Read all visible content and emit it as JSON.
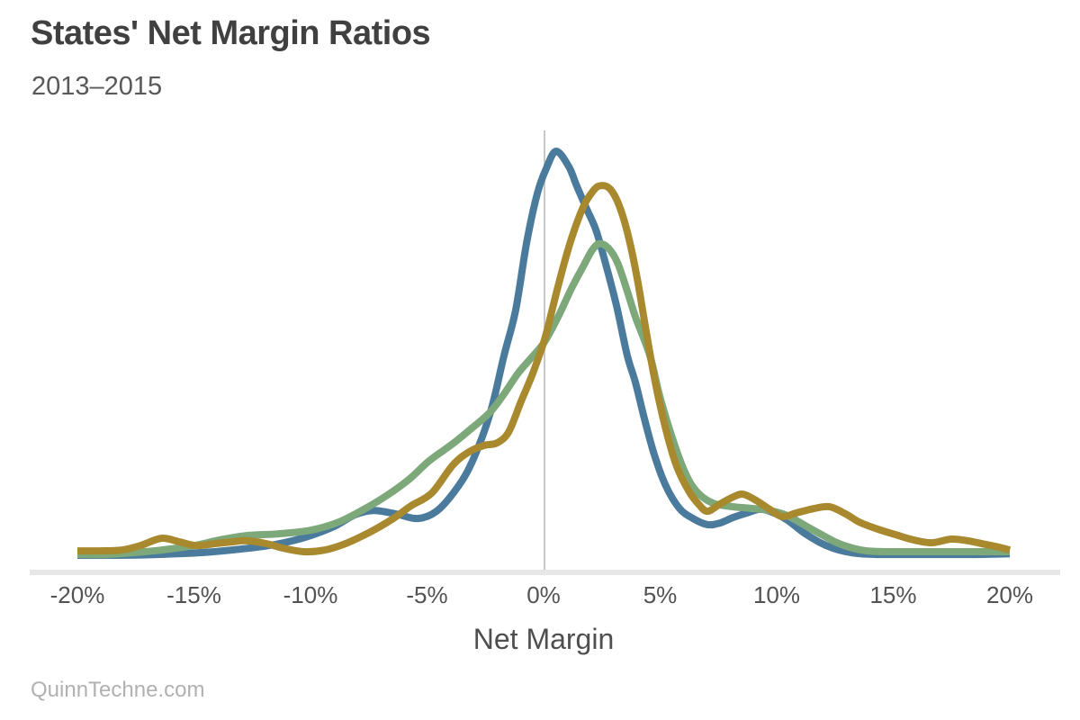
{
  "header": {
    "title": "States' Net Margin Ratios",
    "subtitle": "2013–2015"
  },
  "footer": {
    "source": "QuinnTechne.com"
  },
  "chart_data": {
    "type": "line",
    "variant": "kde-density",
    "title": "States' Net Margin Ratios",
    "subtitle": "2013–2015",
    "xlabel": "Net Margin",
    "ylabel": "",
    "x_unit": "percent",
    "xlim": [
      -20,
      20
    ],
    "x_ticks": [
      -20,
      -15,
      -10,
      -5,
      0,
      5,
      10,
      15,
      20
    ],
    "x_tick_labels": [
      "-20%",
      "-15%",
      "-10%",
      "-5%",
      "0%",
      "5%",
      "10%",
      "15%",
      "20%"
    ],
    "grid": "single vertical reference line at 0%",
    "legend": "none",
    "axis_line_color": "#e7e7e7",
    "zero_line_color": "#c8c8c8",
    "y_axis_shown": false,
    "y_note": "density values normalized so tallest (blue) peak = 1.0",
    "series": [
      {
        "name": "blue",
        "color": "#4a7a9c",
        "peak": {
          "x": 0.5,
          "density": 1.0
        },
        "points": [
          [
            -20,
            0
          ],
          [
            -18.3,
            0
          ],
          [
            -16.6,
            0.002
          ],
          [
            -14.6,
            0.007
          ],
          [
            -12.9,
            0.016
          ],
          [
            -11.5,
            0.027
          ],
          [
            -10.2,
            0.045
          ],
          [
            -9.0,
            0.071
          ],
          [
            -8.1,
            0.1
          ],
          [
            -7.3,
            0.111
          ],
          [
            -6.3,
            0.102
          ],
          [
            -5.4,
            0.091
          ],
          [
            -4.6,
            0.109
          ],
          [
            -3.8,
            0.16
          ],
          [
            -3.1,
            0.227
          ],
          [
            -2.3,
            0.35
          ],
          [
            -1.7,
            0.494
          ],
          [
            -1.2,
            0.606
          ],
          [
            -0.73,
            0.773
          ],
          [
            -0.27,
            0.895
          ],
          [
            0.12,
            0.958
          ],
          [
            0.54,
            1.0
          ],
          [
            1.08,
            0.962
          ],
          [
            1.43,
            0.913
          ],
          [
            1.85,
            0.857
          ],
          [
            2.24,
            0.806
          ],
          [
            2.63,
            0.728
          ],
          [
            3.13,
            0.617
          ],
          [
            3.59,
            0.494
          ],
          [
            3.94,
            0.428
          ],
          [
            4.32,
            0.339
          ],
          [
            4.75,
            0.249
          ],
          [
            5.25,
            0.171
          ],
          [
            5.83,
            0.116
          ],
          [
            6.41,
            0.091
          ],
          [
            7.03,
            0.076
          ],
          [
            7.57,
            0.08
          ],
          [
            8.15,
            0.094
          ],
          [
            8.73,
            0.105
          ],
          [
            9.31,
            0.114
          ],
          [
            9.88,
            0.105
          ],
          [
            10.46,
            0.087
          ],
          [
            11.16,
            0.056
          ],
          [
            11.81,
            0.033
          ],
          [
            12.39,
            0.018
          ],
          [
            12.97,
            0.009
          ],
          [
            13.55,
            0.004
          ],
          [
            14.32,
            0.002
          ],
          [
            15.29,
            0.002
          ],
          [
            16.83,
            0.002
          ],
          [
            18.38,
            0.002
          ],
          [
            20,
            0.004
          ]
        ]
      },
      {
        "name": "green",
        "color": "#7da87a",
        "peak": {
          "x": 2.4,
          "density": 0.77
        },
        "points": [
          [
            -20,
            0.002
          ],
          [
            -18.7,
            0.002
          ],
          [
            -17.5,
            0.007
          ],
          [
            -16.4,
            0.013
          ],
          [
            -15.0,
            0.024
          ],
          [
            -13.9,
            0.038
          ],
          [
            -12.7,
            0.049
          ],
          [
            -11.4,
            0.053
          ],
          [
            -10.0,
            0.062
          ],
          [
            -8.8,
            0.082
          ],
          [
            -7.7,
            0.114
          ],
          [
            -6.7,
            0.149
          ],
          [
            -5.75,
            0.189
          ],
          [
            -4.9,
            0.234
          ],
          [
            -3.9,
            0.276
          ],
          [
            -3.05,
            0.316
          ],
          [
            -2.3,
            0.354
          ],
          [
            -1.7,
            0.399
          ],
          [
            -1.1,
            0.45
          ],
          [
            -0.54,
            0.488
          ],
          [
            0.04,
            0.528
          ],
          [
            0.62,
            0.59
          ],
          [
            1.2,
            0.661
          ],
          [
            1.7,
            0.715
          ],
          [
            2.08,
            0.755
          ],
          [
            2.39,
            0.771
          ],
          [
            2.78,
            0.76
          ],
          [
            3.17,
            0.724
          ],
          [
            3.55,
            0.661
          ],
          [
            3.94,
            0.59
          ],
          [
            4.56,
            0.494
          ],
          [
            4.98,
            0.394
          ],
          [
            5.44,
            0.305
          ],
          [
            5.91,
            0.227
          ],
          [
            6.33,
            0.176
          ],
          [
            6.8,
            0.145
          ],
          [
            7.37,
            0.127
          ],
          [
            8.15,
            0.12
          ],
          [
            8.92,
            0.116
          ],
          [
            9.69,
            0.111
          ],
          [
            10.46,
            0.098
          ],
          [
            11.24,
            0.073
          ],
          [
            11.93,
            0.051
          ],
          [
            12.59,
            0.031
          ],
          [
            13.24,
            0.018
          ],
          [
            13.86,
            0.011
          ],
          [
            14.71,
            0.009
          ],
          [
            16.06,
            0.009
          ],
          [
            17.61,
            0.009
          ],
          [
            18.96,
            0.009
          ],
          [
            20,
            0.009
          ]
        ]
      },
      {
        "name": "gold",
        "color": "#a8892e",
        "peak": {
          "x": 2.5,
          "density": 0.92
        },
        "points": [
          [
            -20,
            0.011
          ],
          [
            -19.1,
            0.011
          ],
          [
            -18.1,
            0.013
          ],
          [
            -17.3,
            0.024
          ],
          [
            -16.4,
            0.042
          ],
          [
            -15.6,
            0.033
          ],
          [
            -14.9,
            0.024
          ],
          [
            -14.1,
            0.029
          ],
          [
            -13.4,
            0.033
          ],
          [
            -12.8,
            0.036
          ],
          [
            -11.9,
            0.029
          ],
          [
            -11.2,
            0.018
          ],
          [
            -10.3,
            0.009
          ],
          [
            -9.4,
            0.013
          ],
          [
            -8.5,
            0.029
          ],
          [
            -7.5,
            0.056
          ],
          [
            -6.5,
            0.089
          ],
          [
            -5.7,
            0.122
          ],
          [
            -4.8,
            0.154
          ],
          [
            -3.9,
            0.223
          ],
          [
            -3.2,
            0.256
          ],
          [
            -2.55,
            0.272
          ],
          [
            -2.0,
            0.278
          ],
          [
            -1.5,
            0.305
          ],
          [
            -1.0,
            0.376
          ],
          [
            -0.54,
            0.439
          ],
          [
            -0.15,
            0.501
          ],
          [
            0.12,
            0.55
          ],
          [
            0.62,
            0.666
          ],
          [
            1.16,
            0.777
          ],
          [
            1.7,
            0.862
          ],
          [
            2.16,
            0.904
          ],
          [
            2.47,
            0.915
          ],
          [
            2.86,
            0.906
          ],
          [
            3.24,
            0.866
          ],
          [
            3.63,
            0.791
          ],
          [
            4.02,
            0.684
          ],
          [
            4.4,
            0.554
          ],
          [
            4.79,
            0.428
          ],
          [
            5.25,
            0.31
          ],
          [
            5.71,
            0.22
          ],
          [
            6.22,
            0.16
          ],
          [
            6.64,
            0.127
          ],
          [
            7.03,
            0.109
          ],
          [
            7.57,
            0.127
          ],
          [
            8.15,
            0.145
          ],
          [
            8.57,
            0.151
          ],
          [
            9.11,
            0.136
          ],
          [
            9.69,
            0.114
          ],
          [
            10.23,
            0.096
          ],
          [
            10.85,
            0.105
          ],
          [
            11.62,
            0.116
          ],
          [
            12.28,
            0.12
          ],
          [
            12.97,
            0.102
          ],
          [
            13.55,
            0.082
          ],
          [
            14.32,
            0.065
          ],
          [
            15.1,
            0.051
          ],
          [
            15.87,
            0.038
          ],
          [
            16.64,
            0.031
          ],
          [
            17.49,
            0.04
          ],
          [
            18.19,
            0.036
          ],
          [
            18.96,
            0.027
          ],
          [
            19.54,
            0.02
          ],
          [
            20,
            0.013
          ]
        ]
      }
    ]
  }
}
